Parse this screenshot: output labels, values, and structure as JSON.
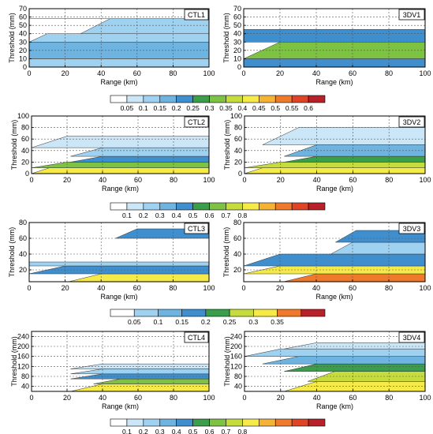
{
  "figure": {
    "rows": [
      {
        "ylabel": "Threshold (mm)",
        "xlabel": "Range (km)",
        "colorbar_labels": [
          "0.05",
          "0.1",
          "0.15",
          "0.2",
          "0.25",
          "0.3",
          "0.35",
          "0.4",
          "0.45",
          "0.5",
          "0.55",
          "0.6"
        ],
        "colorbar_colors": [
          "#ffffff",
          "#cbe6f7",
          "#9fd1f0",
          "#6fb3e0",
          "#3f8fcf",
          "#3a9e4a",
          "#7dc242",
          "#c6dc3c",
          "#f6ea48",
          "#f5b335",
          "#ef7a2b",
          "#e04427",
          "#b8202a"
        ],
        "panels": [
          {
            "label": "CTL1",
            "ytick_labels": [
              "0",
              "10",
              "20",
              "30",
              "40",
              "50",
              "60",
              "70"
            ],
            "xtick_labels": [
              "0",
              "20",
              "40",
              "60",
              "80",
              "100"
            ]
          },
          {
            "label": "3DV1",
            "ytick_labels": [
              "0",
              "10",
              "20",
              "30",
              "40",
              "50",
              "60",
              "70"
            ],
            "xtick_labels": [
              "0",
              "20",
              "40",
              "60",
              "80",
              "100"
            ]
          }
        ]
      },
      {
        "ylabel": "Threshold (mm)",
        "xlabel": "Range (km)",
        "colorbar_labels": [
          "0.1",
          "0.2",
          "0.3",
          "0.4",
          "0.5",
          "0.6",
          "0.7",
          "0.8"
        ],
        "colorbar_colors": [
          "#ffffff",
          "#cbe6f7",
          "#9fd1f0",
          "#6fb3e0",
          "#3f8fcf",
          "#3a9e4a",
          "#7dc242",
          "#c6dc3c",
          "#f6ea48",
          "#f5b335",
          "#ef7a2b",
          "#e04427",
          "#b8202a"
        ],
        "panels": [
          {
            "label": "CTL2",
            "ytick_labels": [
              "0",
              "20",
              "40",
              "60",
              "80",
              "100"
            ],
            "xtick_labels": [
              "0",
              "20",
              "40",
              "60",
              "80",
              "100"
            ]
          },
          {
            "label": "3DV2",
            "ytick_labels": [
              "0",
              "20",
              "40",
              "60",
              "80",
              "100"
            ],
            "xtick_labels": [
              "0",
              "20",
              "40",
              "60",
              "80",
              "100"
            ]
          }
        ]
      },
      {
        "ylabel": "Threshold (mm)",
        "xlabel": "Range (km)",
        "colorbar_labels": [
          "0.05",
          "0.1",
          "0.15",
          "0.2",
          "0.25",
          "0.3",
          "0.35"
        ],
        "colorbar_colors": [
          "#ffffff",
          "#9fd1f0",
          "#6fb3e0",
          "#3f8fcf",
          "#3a9e4a",
          "#c6dc3c",
          "#f6ea48",
          "#ef7a2b",
          "#b8202a"
        ],
        "panels": [
          {
            "label": "CTL3",
            "ytick_labels": [
              "20",
              "40",
              "60",
              "80"
            ],
            "xtick_labels": [
              "0",
              "20",
              "40",
              "60",
              "80",
              "100"
            ]
          },
          {
            "label": "3DV3",
            "ytick_labels": [
              "20",
              "40",
              "60",
              "80"
            ],
            "xtick_labels": [
              "0",
              "20",
              "40",
              "60",
              "80",
              "100"
            ]
          }
        ]
      },
      {
        "ylabel": "Threshold (mm)",
        "xlabel": "Range (km)",
        "colorbar_labels": [
          "0.1",
          "0.2",
          "0.3",
          "0.4",
          "0.5",
          "0.6",
          "0.7",
          "0.8"
        ],
        "colorbar_colors": [
          "#ffffff",
          "#cbe6f7",
          "#9fd1f0",
          "#6fb3e0",
          "#3f8fcf",
          "#3a9e4a",
          "#7dc242",
          "#c6dc3c",
          "#f6ea48",
          "#f5b335",
          "#ef7a2b",
          "#e04427",
          "#b8202a"
        ],
        "panels": [
          {
            "label": "CTL4",
            "ytick_labels": [
              "40",
              "80",
              "120",
              "160",
              "200",
              "240"
            ],
            "xtick_labels": [
              "0",
              "20",
              "40",
              "60",
              "80",
              "100"
            ]
          },
          {
            "label": "3DV4",
            "ytick_labels": [
              "40",
              "80",
              "120",
              "160",
              "200",
              "240"
            ],
            "xtick_labels": [
              "0",
              "20",
              "40",
              "60",
              "80",
              "100"
            ]
          }
        ]
      }
    ]
  },
  "chart_data": [
    {
      "type": "heatmap",
      "panel": "CTL1",
      "xlabel": "Range (km)",
      "ylabel": "Threshold (mm)",
      "xlim": [
        0,
        100
      ],
      "ylim": [
        0,
        70
      ],
      "grid": true,
      "colorbar": [
        0.05,
        0.1,
        0.15,
        0.2,
        0.25,
        0.3,
        0.35,
        0.4,
        0.45,
        0.5,
        0.55,
        0.6
      ],
      "bands": [
        {
          "y": [
            0,
            10
          ],
          "value": 0.1
        },
        {
          "y": [
            10,
            30
          ],
          "value": 0.15,
          "from_x": 0
        },
        {
          "y": [
            30,
            40
          ],
          "value": 0.1,
          "from_x": 10
        },
        {
          "y": [
            40,
            58
          ],
          "value": 0.1,
          "from_x": 45
        },
        {
          "y": [
            58,
            70
          ],
          "value": 0.0
        }
      ]
    },
    {
      "type": "heatmap",
      "panel": "3DV1",
      "xlabel": "Range (km)",
      "ylabel": "Threshold (mm)",
      "xlim": [
        0,
        100
      ],
      "ylim": [
        0,
        70
      ],
      "grid": true,
      "colorbar": [
        0.05,
        0.1,
        0.15,
        0.2,
        0.25,
        0.3,
        0.35,
        0.4,
        0.45,
        0.5,
        0.55,
        0.6
      ],
      "bands": [
        {
          "y": [
            0,
            10
          ],
          "value": 0.2
        },
        {
          "y": [
            10,
            30
          ],
          "value": 0.3,
          "from_x": 20
        },
        {
          "y": [
            30,
            45
          ],
          "value": 0.2
        },
        {
          "y": [
            45,
            70
          ],
          "value": 0.0
        }
      ]
    },
    {
      "type": "heatmap",
      "panel": "CTL2",
      "xlabel": "Range (km)",
      "ylabel": "Threshold (mm)",
      "xlim": [
        0,
        100
      ],
      "ylim": [
        0,
        100
      ],
      "grid": true,
      "colorbar": [
        0.1,
        0.2,
        0.3,
        0.4,
        0.5,
        0.6,
        0.7,
        0.8
      ],
      "bands": [
        {
          "y": [
            0,
            10
          ],
          "value": 0.8,
          "from_x": 10
        },
        {
          "y": [
            10,
            20
          ],
          "value": 0.6,
          "from_x": 20
        },
        {
          "y": [
            20,
            30
          ],
          "value": 0.4,
          "from_x": 40
        },
        {
          "y": [
            30,
            45
          ],
          "value": 0.25,
          "from_x": 40
        },
        {
          "y": [
            45,
            65
          ],
          "value": 0.1,
          "from_x": 20
        }
      ]
    },
    {
      "type": "heatmap",
      "panel": "3DV2",
      "xlabel": "Range (km)",
      "ylabel": "Threshold (mm)",
      "xlim": [
        0,
        100
      ],
      "ylim": [
        0,
        100
      ],
      "grid": true,
      "colorbar": [
        0.1,
        0.2,
        0.3,
        0.4,
        0.5,
        0.6,
        0.7,
        0.8
      ],
      "bands": [
        {
          "y": [
            0,
            10
          ],
          "value": 0.85,
          "from_x": 10
        },
        {
          "y": [
            10,
            20
          ],
          "value": 0.7,
          "from_x": 20
        },
        {
          "y": [
            20,
            30
          ],
          "value": 0.5,
          "from_x": 40
        },
        {
          "y": [
            30,
            50
          ],
          "value": 0.3,
          "from_x": 40
        },
        {
          "y": [
            50,
            80
          ],
          "value": 0.15,
          "from_x": 30
        }
      ]
    },
    {
      "type": "heatmap",
      "panel": "CTL3",
      "xlabel": "Range (km)",
      "ylabel": "Threshold (mm)",
      "xlim": [
        0,
        100
      ],
      "ylim": [
        5,
        80
      ],
      "grid": true,
      "colorbar": [
        0.05,
        0.1,
        0.15,
        0.2,
        0.25,
        0.3,
        0.35
      ],
      "bands": [
        {
          "y": [
            5,
            15
          ],
          "value": 0.3,
          "from_x": 40
        },
        {
          "y": [
            15,
            25
          ],
          "value": 0.15,
          "from_x": 20
        },
        {
          "y": [
            25,
            30
          ],
          "value": 0.05
        },
        {
          "y": [
            60,
            72
          ],
          "value": 0.15,
          "from_x": 60
        }
      ]
    },
    {
      "type": "heatmap",
      "panel": "3DV3",
      "xlabel": "Range (km)",
      "ylabel": "Threshold (mm)",
      "xlim": [
        0,
        100
      ],
      "ylim": [
        5,
        80
      ],
      "grid": true,
      "colorbar": [
        0.05,
        0.1,
        0.15,
        0.2,
        0.25,
        0.3,
        0.35
      ],
      "bands": [
        {
          "y": [
            5,
            15
          ],
          "value": 0.35,
          "from_x": 40
        },
        {
          "y": [
            15,
            25
          ],
          "value": 0.3,
          "from_x": 20
        },
        {
          "y": [
            25,
            40
          ],
          "value": 0.15,
          "from_x": 20
        },
        {
          "y": [
            40,
            55
          ],
          "value": 0.05,
          "from_x": 60
        },
        {
          "y": [
            55,
            70
          ],
          "value": 0.15,
          "from_x": 62
        }
      ]
    },
    {
      "type": "heatmap",
      "panel": "CTL4",
      "xlabel": "Range (km)",
      "ylabel": "Threshold (mm)",
      "xlim": [
        0,
        100
      ],
      "ylim": [
        20,
        260
      ],
      "grid": true,
      "colorbar": [
        0.1,
        0.2,
        0.3,
        0.4,
        0.5,
        0.6,
        0.7,
        0.8
      ],
      "bands": [
        {
          "y": [
            20,
            50
          ],
          "value": 0.8,
          "from_x": 40
        },
        {
          "y": [
            50,
            70
          ],
          "value": 0.6,
          "from_x": 50
        },
        {
          "y": [
            70,
            90
          ],
          "value": 0.4,
          "from_x": 40
        },
        {
          "y": [
            90,
            110
          ],
          "value": 0.2,
          "from_x": 40
        },
        {
          "y": [
            110,
            130
          ],
          "value": 0.1,
          "from_x": 40
        }
      ]
    },
    {
      "type": "heatmap",
      "panel": "3DV4",
      "xlabel": "Range (km)",
      "ylabel": "Threshold (mm)",
      "xlim": [
        0,
        100
      ],
      "ylim": [
        20,
        260
      ],
      "grid": true,
      "colorbar": [
        0.1,
        0.2,
        0.3,
        0.4,
        0.5,
        0.6,
        0.7,
        0.8
      ],
      "bands": [
        {
          "y": [
            20,
            60
          ],
          "value": 0.85,
          "from_x": 40
        },
        {
          "y": [
            60,
            100
          ],
          "value": 0.7,
          "from_x": 50
        },
        {
          "y": [
            100,
            130
          ],
          "value": 0.5,
          "from_x": 40
        },
        {
          "y": [
            130,
            160
          ],
          "value": 0.3,
          "from_x": 30
        },
        {
          "y": [
            160,
            190
          ],
          "value": 0.2,
          "from_x": 20
        },
        {
          "y": [
            190,
            215
          ],
          "value": 0.1,
          "from_x": 40
        }
      ]
    }
  ]
}
